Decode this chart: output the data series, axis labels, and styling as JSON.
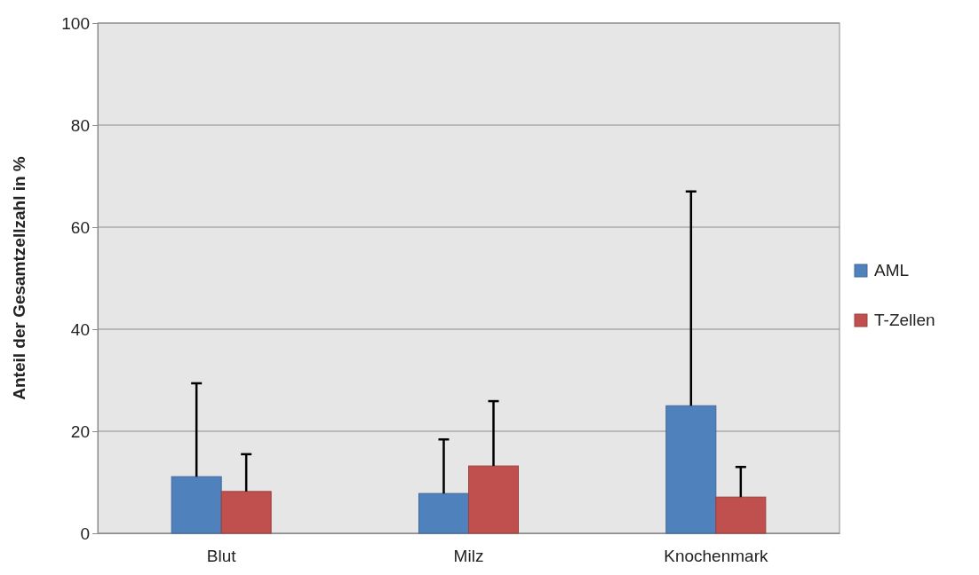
{
  "chart_data": {
    "type": "bar",
    "ylabel": "Anteil  der Gesamtzellzahl in %",
    "categories": [
      "Blut",
      "Milz",
      "Knochenmark"
    ],
    "series": [
      {
        "name": "AML",
        "color": "#4f81bd",
        "values": [
          11.1,
          7.8,
          25.0
        ],
        "errors": [
          [
            11.1,
            29.4
          ],
          [
            7.8,
            18.4
          ],
          [
            25.0,
            67.0
          ]
        ]
      },
      {
        "name": "T-Zellen",
        "color": "#c0504d",
        "values": [
          8.2,
          13.2,
          7.1
        ],
        "errors": [
          [
            8.2,
            15.5
          ],
          [
            13.2,
            25.9
          ],
          [
            7.1,
            13.0
          ]
        ]
      }
    ],
    "ylim": [
      0,
      100
    ],
    "yticks": [
      0,
      20,
      40,
      60,
      80,
      100
    ],
    "grid": "y",
    "legend": "right"
  }
}
